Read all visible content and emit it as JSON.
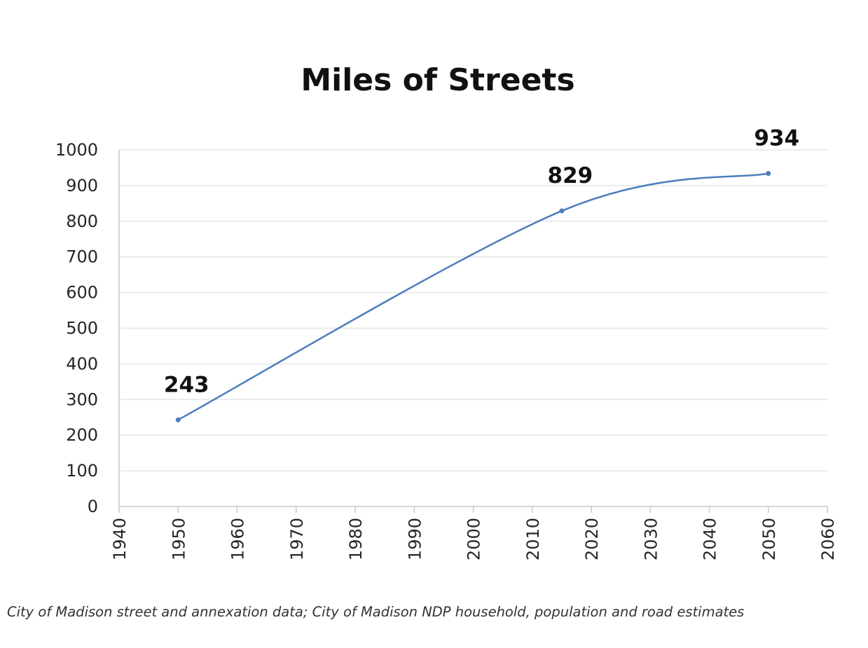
{
  "chart_data": {
    "type": "line",
    "title": "Miles of Streets",
    "xlabel": "",
    "ylabel": "",
    "xlim": [
      1940,
      2060
    ],
    "ylim": [
      0,
      1000
    ],
    "x_ticks": [
      1940,
      1950,
      1960,
      1970,
      1980,
      1990,
      2000,
      2010,
      2020,
      2030,
      2040,
      2050,
      2060
    ],
    "y_ticks": [
      0,
      100,
      200,
      300,
      400,
      500,
      600,
      700,
      800,
      900,
      1000
    ],
    "grid": true,
    "smooth": true,
    "series": [
      {
        "name": "",
        "color": "#4a7ebb",
        "points": [
          {
            "x": 1950,
            "y": 243,
            "label": "243"
          },
          {
            "x": 2015,
            "y": 829,
            "label": "829"
          },
          {
            "x": 2050,
            "y": 934,
            "label": "934"
          }
        ]
      }
    ]
  },
  "source_note": "City of Madison street and annexation data; City of Madison NDP household, population and road estimates"
}
